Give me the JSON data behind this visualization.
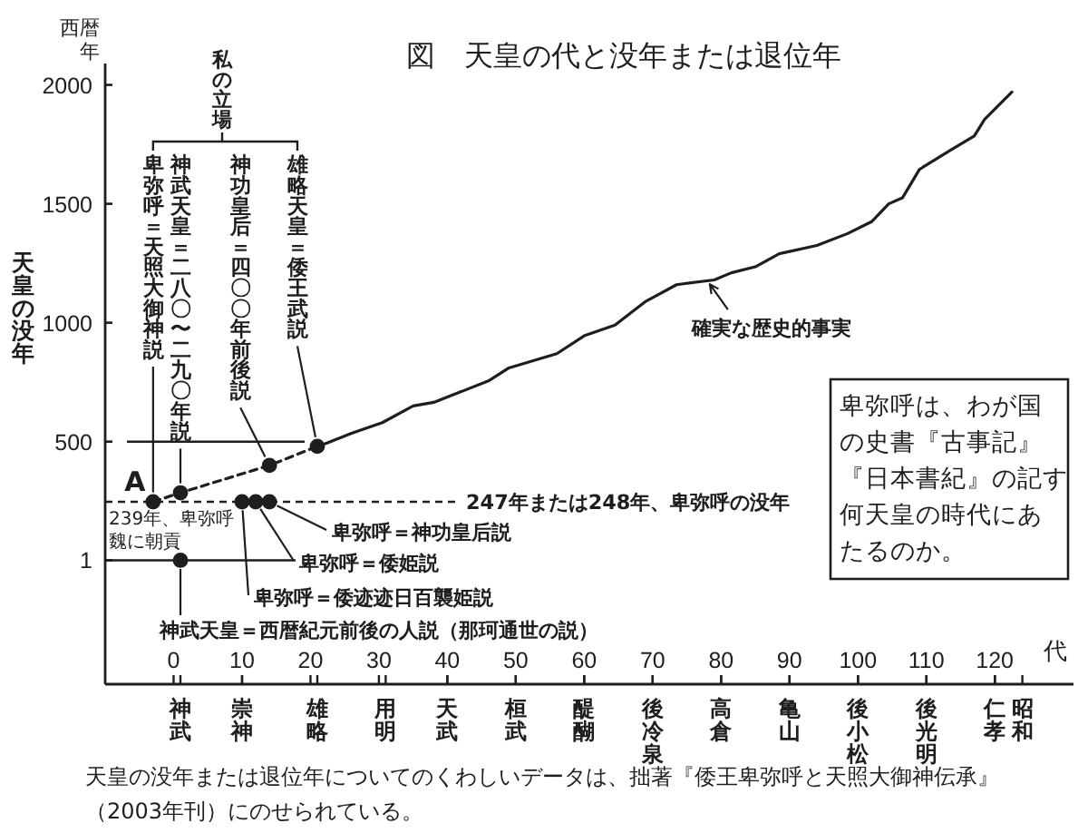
{
  "chart_data": {
    "type": "line",
    "title": "図　天皇の代と没年または退位年",
    "xlabel": "代",
    "ylabel": "天皇の没年",
    "xlim": [
      -10,
      131.5
    ],
    "xticks": [
      0,
      10,
      20,
      30,
      40,
      50,
      60,
      70,
      80,
      90,
      100,
      110,
      120
    ],
    "ylim": [
      -520,
      2090
    ],
    "yticks": [
      1,
      500,
      1000,
      1500,
      2000
    ],
    "series": [
      {
        "name": "確実な歴史的事実",
        "color": "#1e1e1e",
        "x": [
          21,
          22.5,
          26,
          30.5,
          35,
          38,
          46,
          49,
          56,
          60,
          64.5,
          69,
          73.5,
          79,
          81.5,
          85,
          88.5,
          94,
          98.5,
          102,
          104.5,
          106.5,
          109,
          113.5,
          117,
          118.5,
          122.5
        ],
        "values": [
          480,
          495,
          535,
          580,
          650,
          665,
          755,
          810,
          870,
          945,
          990,
          1090,
          1160,
          1180,
          1210,
          1235,
          1290,
          1325,
          1375,
          1425,
          1500,
          1525,
          1645,
          1725,
          1785,
          1855,
          1970
        ]
      },
      {
        "type": "line",
        "line_style": "dashed",
        "marker": "circle",
        "color": "#1e1e1e",
        "x": [
          -3,
          1,
          14,
          21
        ],
        "values": [
          247,
          285,
          400,
          480
        ]
      },
      {
        "type": "scatter",
        "marker": "circle",
        "color": "#1e1e1e",
        "x": [
          1,
          10,
          12,
          14
        ],
        "values": [
          1,
          247,
          247,
          247
        ]
      }
    ],
    "ref_lines": [
      {
        "axis": "y",
        "value": 500,
        "color": "#1e1e1e",
        "line_style": "solid"
      },
      {
        "axis": "y",
        "value": 247,
        "label": "247年または248年、卑弥呼の没年",
        "color": "#1e1e1e",
        "line_style": "dashed"
      },
      {
        "axis": "y",
        "value": 1,
        "color": "#1e1e1e",
        "line_style": "solid"
      }
    ],
    "annotations": [
      "神武",
      "崇神",
      "雄略",
      "用明",
      "天武",
      "桓武",
      "醍醐",
      "後冷泉",
      "高倉",
      "亀山",
      "後小松",
      "後光明",
      "仁孝",
      "昭和",
      "西暦年",
      "私の立場",
      "卑弥呼＝天照大御神説",
      "神武天皇＝二八〇〜二九〇年説",
      "神功皇后＝四〇〇年前後説",
      "雄略天皇＝倭王武説",
      {
        "text": "A",
        "x": -3,
        "y": 247
      },
      "239年、卑弥呼魏に朝貢",
      {
        "text": "卑弥呼＝神功皇后説",
        "x": 14,
        "y": 247
      },
      {
        "text": "卑弥呼＝倭姫説",
        "x": 12,
        "y": 247
      },
      {
        "text": "卑弥呼＝倭迹迹日百襲姫説",
        "x": 10,
        "y": 247
      },
      {
        "text": "神武天皇＝西暦紀元前後の人説（那珂通世の説）",
        "x": 1,
        "y": 1
      },
      "卑弥呼は、わが国の史書『古事記』『日本書紀』の記す何天皇の時代にあたるのか。",
      "天皇の没年または退位年についてのくわしいデータは、拙著『倭王卑弥呼と天照大御神伝承』（2003年刊）にのせられている。"
    ]
  }
}
